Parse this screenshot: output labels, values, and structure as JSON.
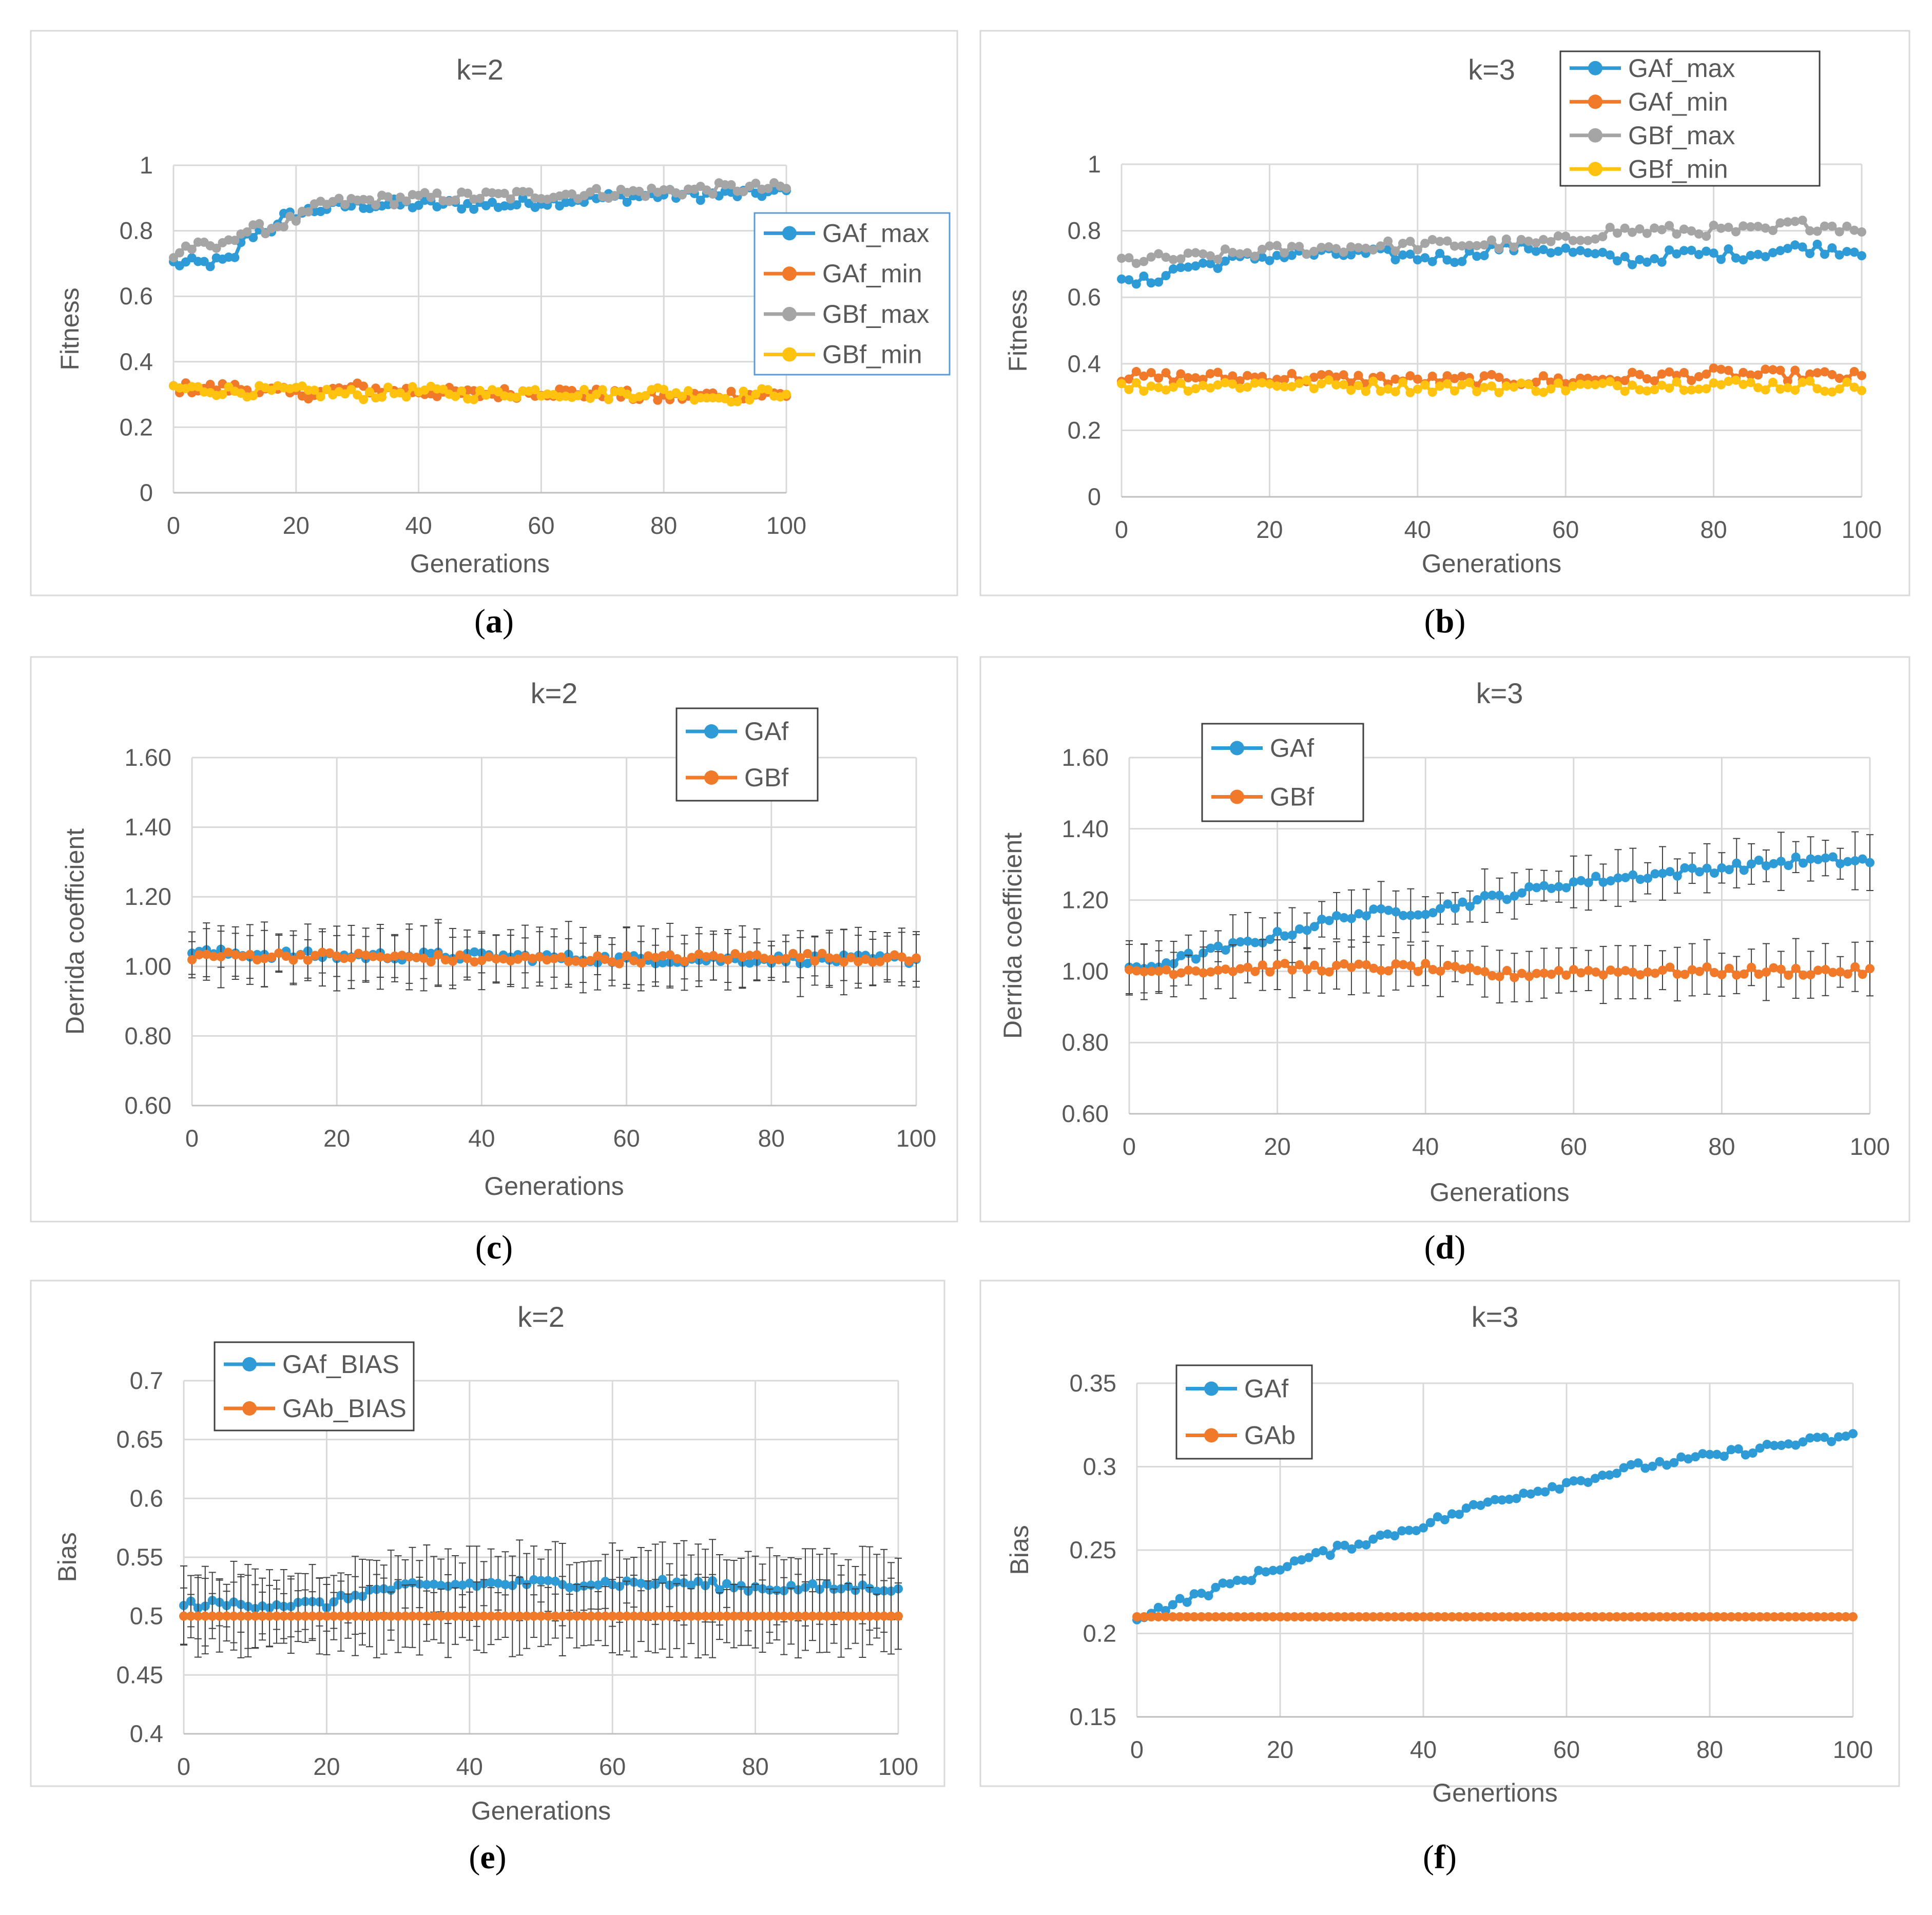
{
  "figure": {
    "panels": [
      {
        "id": "a",
        "caption": "a"
      },
      {
        "id": "b",
        "caption": "b"
      },
      {
        "id": "c",
        "caption": "c"
      },
      {
        "id": "d",
        "caption": "d"
      },
      {
        "id": "e",
        "caption": "e"
      },
      {
        "id": "f",
        "caption": "f"
      }
    ]
  },
  "colors": {
    "blue": "#2E9BD6",
    "orange": "#F07A2A",
    "gray": "#A5A5A5",
    "yellow": "#FFC20E",
    "grid": "#D9D9D9",
    "axis": "#BFBFBF",
    "text": "#595959",
    "errorbar": "#404040"
  },
  "chart_data": [
    {
      "panel": "a",
      "type": "line",
      "title": "k=2",
      "xlabel": "Generations",
      "ylabel": "Fitness",
      "xlim": [
        0,
        100
      ],
      "ylim": [
        0,
        1
      ],
      "xticks": [
        0,
        20,
        40,
        60,
        80,
        100
      ],
      "yticks": [
        0,
        0.2,
        0.4,
        0.6,
        0.8,
        1
      ],
      "ytick_labels": [
        "0",
        "0.2",
        "0.4",
        "0.6",
        "0.8",
        "1"
      ],
      "legend": "right",
      "series": [
        {
          "name": "GAf_max",
          "color": "blue",
          "pts": [
            [
              0,
              0.7
            ],
            [
              5,
              0.7
            ],
            [
              10,
              0.71
            ],
            [
              11,
              0.77
            ],
            [
              14,
              0.8
            ],
            [
              17,
              0.81
            ],
            [
              18,
              0.84
            ],
            [
              22,
              0.86
            ],
            [
              25,
              0.87
            ],
            [
              30,
              0.88
            ],
            [
              40,
              0.88
            ],
            [
              55,
              0.88
            ],
            [
              60,
              0.89
            ],
            [
              70,
              0.9
            ],
            [
              80,
              0.91
            ],
            [
              90,
              0.91
            ],
            [
              100,
              0.92
            ]
          ]
        },
        {
          "name": "GAf_min",
          "color": "orange",
          "pts": [
            [
              0,
              0.32
            ],
            [
              10,
              0.32
            ],
            [
              20,
              0.3
            ],
            [
              30,
              0.32
            ],
            [
              40,
              0.31
            ],
            [
              50,
              0.3
            ],
            [
              60,
              0.31
            ],
            [
              70,
              0.3
            ],
            [
              80,
              0.29
            ],
            [
              90,
              0.3
            ],
            [
              100,
              0.3
            ]
          ]
        },
        {
          "name": "GBf_max",
          "color": "gray",
          "pts": [
            [
              0,
              0.72
            ],
            [
              2,
              0.75
            ],
            [
              8,
              0.75
            ],
            [
              9,
              0.78
            ],
            [
              12,
              0.8
            ],
            [
              16,
              0.81
            ],
            [
              22,
              0.85
            ],
            [
              24,
              0.88
            ],
            [
              30,
              0.89
            ],
            [
              40,
              0.9
            ],
            [
              60,
              0.91
            ],
            [
              80,
              0.92
            ],
            [
              90,
              0.93
            ],
            [
              100,
              0.93
            ]
          ]
        },
        {
          "name": "GBf_min",
          "color": "yellow",
          "pts": [
            [
              0,
              0.32
            ],
            [
              10,
              0.31
            ],
            [
              20,
              0.31
            ],
            [
              30,
              0.3
            ],
            [
              40,
              0.31
            ],
            [
              50,
              0.3
            ],
            [
              60,
              0.31
            ],
            [
              70,
              0.3
            ],
            [
              80,
              0.31
            ],
            [
              90,
              0.29
            ],
            [
              100,
              0.31
            ]
          ]
        }
      ]
    },
    {
      "panel": "b",
      "type": "line",
      "title": "k=3",
      "xlabel": "Generations",
      "ylabel": "Fitness",
      "xlim": [
        0,
        100
      ],
      "ylim": [
        0,
        1
      ],
      "xticks": [
        0,
        20,
        40,
        60,
        80,
        100
      ],
      "yticks": [
        0,
        0.2,
        0.4,
        0.6,
        0.8,
        1
      ],
      "ytick_labels": [
        "0",
        "0.2",
        "0.4",
        "0.6",
        "0.8",
        "1"
      ],
      "legend": "top-right",
      "series": [
        {
          "name": "GAf_max",
          "color": "blue",
          "pts": [
            [
              0,
              0.64
            ],
            [
              4,
              0.65
            ],
            [
              8,
              0.69
            ],
            [
              12,
              0.7
            ],
            [
              18,
              0.72
            ],
            [
              25,
              0.73
            ],
            [
              35,
              0.73
            ],
            [
              40,
              0.72
            ],
            [
              46,
              0.72
            ],
            [
              50,
              0.75
            ],
            [
              55,
              0.75
            ],
            [
              60,
              0.74
            ],
            [
              65,
              0.72
            ],
            [
              70,
              0.71
            ],
            [
              75,
              0.73
            ],
            [
              85,
              0.73
            ],
            [
              92,
              0.75
            ],
            [
              100,
              0.74
            ]
          ]
        },
        {
          "name": "GAf_min",
          "color": "orange",
          "pts": [
            [
              0,
              0.36
            ],
            [
              20,
              0.36
            ],
            [
              40,
              0.35
            ],
            [
              60,
              0.35
            ],
            [
              80,
              0.37
            ],
            [
              100,
              0.36
            ]
          ]
        },
        {
          "name": "GBf_max",
          "color": "gray",
          "pts": [
            [
              0,
              0.71
            ],
            [
              10,
              0.72
            ],
            [
              20,
              0.74
            ],
            [
              30,
              0.75
            ],
            [
              45,
              0.76
            ],
            [
              55,
              0.76
            ],
            [
              60,
              0.77
            ],
            [
              66,
              0.8
            ],
            [
              80,
              0.8
            ],
            [
              88,
              0.8
            ],
            [
              90,
              0.82
            ],
            [
              100,
              0.81
            ]
          ]
        },
        {
          "name": "GBf_min",
          "color": "yellow",
          "pts": [
            [
              0,
              0.33
            ],
            [
              20,
              0.34
            ],
            [
              40,
              0.33
            ],
            [
              60,
              0.33
            ],
            [
              80,
              0.34
            ],
            [
              100,
              0.33
            ]
          ]
        }
      ]
    },
    {
      "panel": "c",
      "type": "line",
      "title": "k=2",
      "xlabel": "Generations",
      "ylabel": "Derrida coefficient",
      "xlim": [
        0,
        100
      ],
      "ylim": [
        0.6,
        1.6
      ],
      "xticks": [
        0,
        20,
        40,
        60,
        80,
        100
      ],
      "yticks": [
        0.6,
        0.8,
        1.0,
        1.2,
        1.4,
        1.6
      ],
      "ytick_labels": [
        "0.60",
        "0.80",
        "1.00",
        "1.20",
        "1.40",
        "1.60"
      ],
      "legend": "top-right",
      "error": 0.08,
      "series": [
        {
          "name": "GAf",
          "color": "blue",
          "pts": [
            [
              0,
              1.04
            ],
            [
              20,
              1.03
            ],
            [
              40,
              1.03
            ],
            [
              60,
              1.02
            ],
            [
              80,
              1.02
            ],
            [
              100,
              1.02
            ]
          ]
        },
        {
          "name": "GBf",
          "color": "orange",
          "pts": [
            [
              0,
              1.03
            ],
            [
              20,
              1.03
            ],
            [
              40,
              1.02
            ],
            [
              60,
              1.02
            ],
            [
              80,
              1.03
            ],
            [
              100,
              1.02
            ]
          ]
        }
      ]
    },
    {
      "panel": "d",
      "type": "line",
      "title": "k=3",
      "xlabel": "Generations",
      "ylabel": "Derrida coefficient",
      "xlim": [
        0,
        100
      ],
      "ylim": [
        0.6,
        1.6
      ],
      "xticks": [
        0,
        20,
        40,
        60,
        80,
        100
      ],
      "yticks": [
        0.6,
        0.8,
        1.0,
        1.2,
        1.4,
        1.6
      ],
      "ytick_labels": [
        "0.60",
        "0.80",
        "1.00",
        "1.20",
        "1.40",
        "1.60"
      ],
      "legend": "top-left",
      "error": 0.07,
      "series": [
        {
          "name": "GAf",
          "color": "blue",
          "pts": [
            [
              0,
              1.0
            ],
            [
              10,
              1.05
            ],
            [
              20,
              1.1
            ],
            [
              30,
              1.16
            ],
            [
              40,
              1.17
            ],
            [
              50,
              1.21
            ],
            [
              60,
              1.25
            ],
            [
              70,
              1.27
            ],
            [
              80,
              1.29
            ],
            [
              90,
              1.31
            ],
            [
              100,
              1.31
            ]
          ]
        },
        {
          "name": "GBf",
          "color": "orange",
          "pts": [
            [
              0,
              1.0
            ],
            [
              20,
              1.01
            ],
            [
              40,
              1.01
            ],
            [
              50,
              0.99
            ],
            [
              60,
              1.0
            ],
            [
              80,
              1.0
            ],
            [
              100,
              1.0
            ]
          ]
        }
      ]
    },
    {
      "panel": "e",
      "type": "line",
      "title": "k=2",
      "xlabel": "Generations",
      "ylabel": "Bias",
      "xlim": [
        0,
        100
      ],
      "ylim": [
        0.4,
        0.7
      ],
      "xticks": [
        0,
        20,
        40,
        60,
        80,
        100
      ],
      "yticks": [
        0.4,
        0.45,
        0.5,
        0.55,
        0.6,
        0.65,
        0.7
      ],
      "ytick_labels": [
        "0.4",
        "0.45",
        "0.5",
        "0.55",
        "0.6",
        "0.65",
        "0.7"
      ],
      "legend": "top-left",
      "error": 0.03,
      "series": [
        {
          "name": "GAf_BIAS",
          "color": "blue",
          "pts": [
            [
              2,
              0.51
            ],
            [
              10,
              0.51
            ],
            [
              20,
              0.51
            ],
            [
              25,
              0.52
            ],
            [
              30,
              0.524
            ],
            [
              40,
              0.527
            ],
            [
              50,
              0.528
            ],
            [
              60,
              0.528
            ],
            [
              70,
              0.528
            ],
            [
              80,
              0.524
            ],
            [
              90,
              0.524
            ],
            [
              100,
              0.524
            ]
          ]
        },
        {
          "name": "GAb_BIAS",
          "color": "orange",
          "pts": [
            [
              0,
              0.5
            ],
            [
              100,
              0.5
            ]
          ]
        }
      ]
    },
    {
      "panel": "f",
      "type": "line",
      "title": "k=3",
      "xlabel": "Genertions",
      "ylabel": "Bias",
      "xlim": [
        0,
        100
      ],
      "ylim": [
        0.15,
        0.35
      ],
      "xticks": [
        0,
        20,
        40,
        60,
        80,
        100
      ],
      "yticks": [
        0.15,
        0.2,
        0.25,
        0.3,
        0.35
      ],
      "ytick_labels": [
        "0.15",
        "0.2",
        "0.25",
        "0.3",
        "0.35"
      ],
      "legend": "top-left",
      "series": [
        {
          "name": "GAf",
          "color": "blue",
          "pts": [
            [
              0,
              0.21
            ],
            [
              10,
              0.225
            ],
            [
              20,
              0.24
            ],
            [
              30,
              0.253
            ],
            [
              40,
              0.265
            ],
            [
              50,
              0.28
            ],
            [
              60,
              0.29
            ],
            [
              70,
              0.3
            ],
            [
              80,
              0.306
            ],
            [
              90,
              0.313
            ],
            [
              100,
              0.318
            ]
          ]
        },
        {
          "name": "GAb",
          "color": "orange",
          "pts": [
            [
              0,
              0.21
            ],
            [
              100,
              0.21
            ]
          ]
        }
      ]
    }
  ]
}
